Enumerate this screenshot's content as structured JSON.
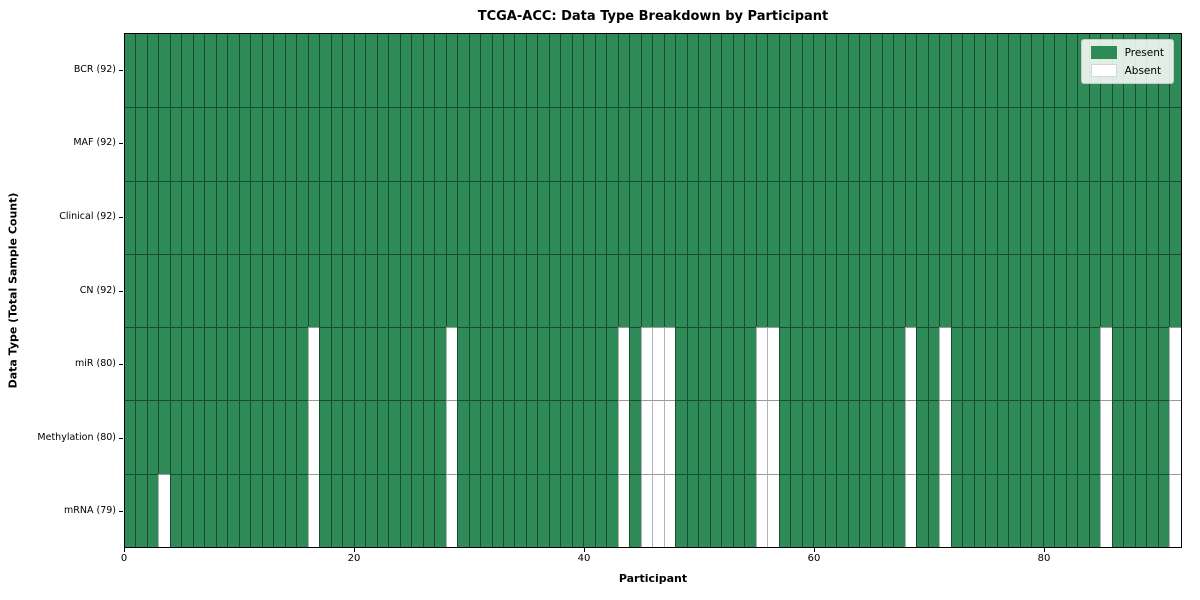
{
  "chart_data": {
    "type": "heatmap",
    "title": "TCGA-ACC: Data Type Breakdown by Participant",
    "xlabel": "Participant",
    "ylabel": "Data Type (Total Sample Count)",
    "x_ticks": [
      0,
      20,
      40,
      60,
      80
    ],
    "xlim": [
      0,
      92
    ],
    "participants_total": 92,
    "colors": {
      "present": "#2e8b57",
      "absent": "#ffffff",
      "grid_on_green": "rgba(0,0,0,0.45)",
      "grid_on_white": "#b3b3b3"
    },
    "legend": {
      "position": "upper-right",
      "entries": [
        {
          "label": "Present",
          "color": "#2e8b57"
        },
        {
          "label": "Absent",
          "color": "#ffffff"
        }
      ]
    },
    "rows": [
      {
        "label": "BCR (92)",
        "data_type": "BCR",
        "present_count": 92,
        "absent_participants": []
      },
      {
        "label": "MAF (92)",
        "data_type": "MAF",
        "present_count": 92,
        "absent_participants": []
      },
      {
        "label": "Clinical (92)",
        "data_type": "Clinical",
        "present_count": 92,
        "absent_participants": []
      },
      {
        "label": "CN (92)",
        "data_type": "CN",
        "present_count": 92,
        "absent_participants": []
      },
      {
        "label": "miR (80)",
        "data_type": "miR",
        "present_count": 80,
        "absent_participants": [
          16,
          28,
          43,
          45,
          46,
          47,
          55,
          56,
          68,
          71,
          85,
          91
        ]
      },
      {
        "label": "Methylation (80)",
        "data_type": "Methylation",
        "present_count": 80,
        "absent_participants": [
          16,
          28,
          43,
          45,
          46,
          47,
          55,
          56,
          68,
          71,
          85,
          91
        ]
      },
      {
        "label": "mRNA (79)",
        "data_type": "mRNA",
        "present_count": 79,
        "absent_participants": [
          3,
          16,
          28,
          43,
          45,
          46,
          47,
          55,
          56,
          68,
          71,
          85,
          91
        ]
      }
    ]
  }
}
